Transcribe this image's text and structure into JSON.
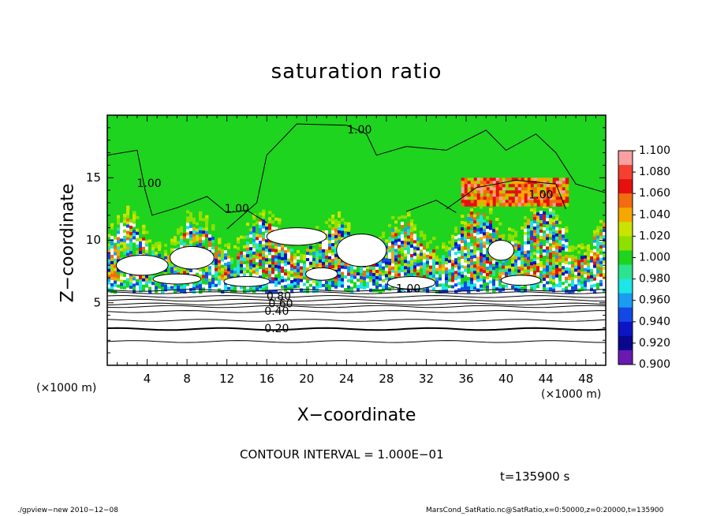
{
  "chart_data": {
    "type": "heatmap",
    "title": "saturation ratio",
    "xlabel": "X−coordinate",
    "ylabel": "Z−coordinate",
    "x_unit_left": "(×1000 m)",
    "x_unit_right": "(×1000 m)",
    "xlim": [
      0,
      50
    ],
    "ylim": [
      0,
      20
    ],
    "x_ticks": [
      4,
      8,
      12,
      16,
      20,
      24,
      28,
      32,
      36,
      40,
      44,
      48
    ],
    "x_tick_labels": [
      "4",
      "8",
      "12",
      "16",
      "20",
      "24",
      "28",
      "32",
      "36",
      "40",
      "44",
      "48"
    ],
    "y_ticks": [
      5,
      10,
      15
    ],
    "y_tick_labels": [
      "5",
      "10",
      "15"
    ],
    "colorbar": {
      "labels": [
        "1.100",
        "1.080",
        "1.060",
        "1.040",
        "1.020",
        "1.000",
        "0.980",
        "0.960",
        "0.940",
        "0.920",
        "0.900"
      ],
      "colors": [
        "#f9a0a0",
        "#f44030",
        "#e61010",
        "#f26c10",
        "#f6a800",
        "#c9e400",
        "#8ee000",
        "#1ed41e",
        "#2ce490",
        "#1ce6e6",
        "#1a9cf2",
        "#1448e6",
        "#0c14c6",
        "#0a0690",
        "#6a1ab2"
      ]
    },
    "contour_labels": [
      {
        "text": "0.20",
        "x": 17,
        "y": 2.9
      },
      {
        "text": "0.40",
        "x": 17,
        "y": 4.3
      },
      {
        "text": "0.60",
        "x": 17.4,
        "y": 4.9
      },
      {
        "text": "0.80",
        "x": 17.2,
        "y": 5.5
      },
      {
        "text": "1.00",
        "x": 4.2,
        "y": 14.5
      },
      {
        "text": "1.00",
        "x": 13,
        "y": 12.5
      },
      {
        "text": "1.00",
        "x": 25.3,
        "y": 18.8
      },
      {
        "text": "1.00",
        "x": 43.5,
        "y": 13.6
      },
      {
        "text": "1.00",
        "x": 30.2,
        "y": 6.1
      }
    ],
    "contour_interval": "CONTOUR INTERVAL = 1.000E−01",
    "time": "t=135900 s"
  },
  "footer": {
    "left": "./gpview−new   2010−12−08",
    "right": "MarsCond_SatRatio.nc@SatRatio,x=0:50000,z=0:20000,t=135900"
  }
}
